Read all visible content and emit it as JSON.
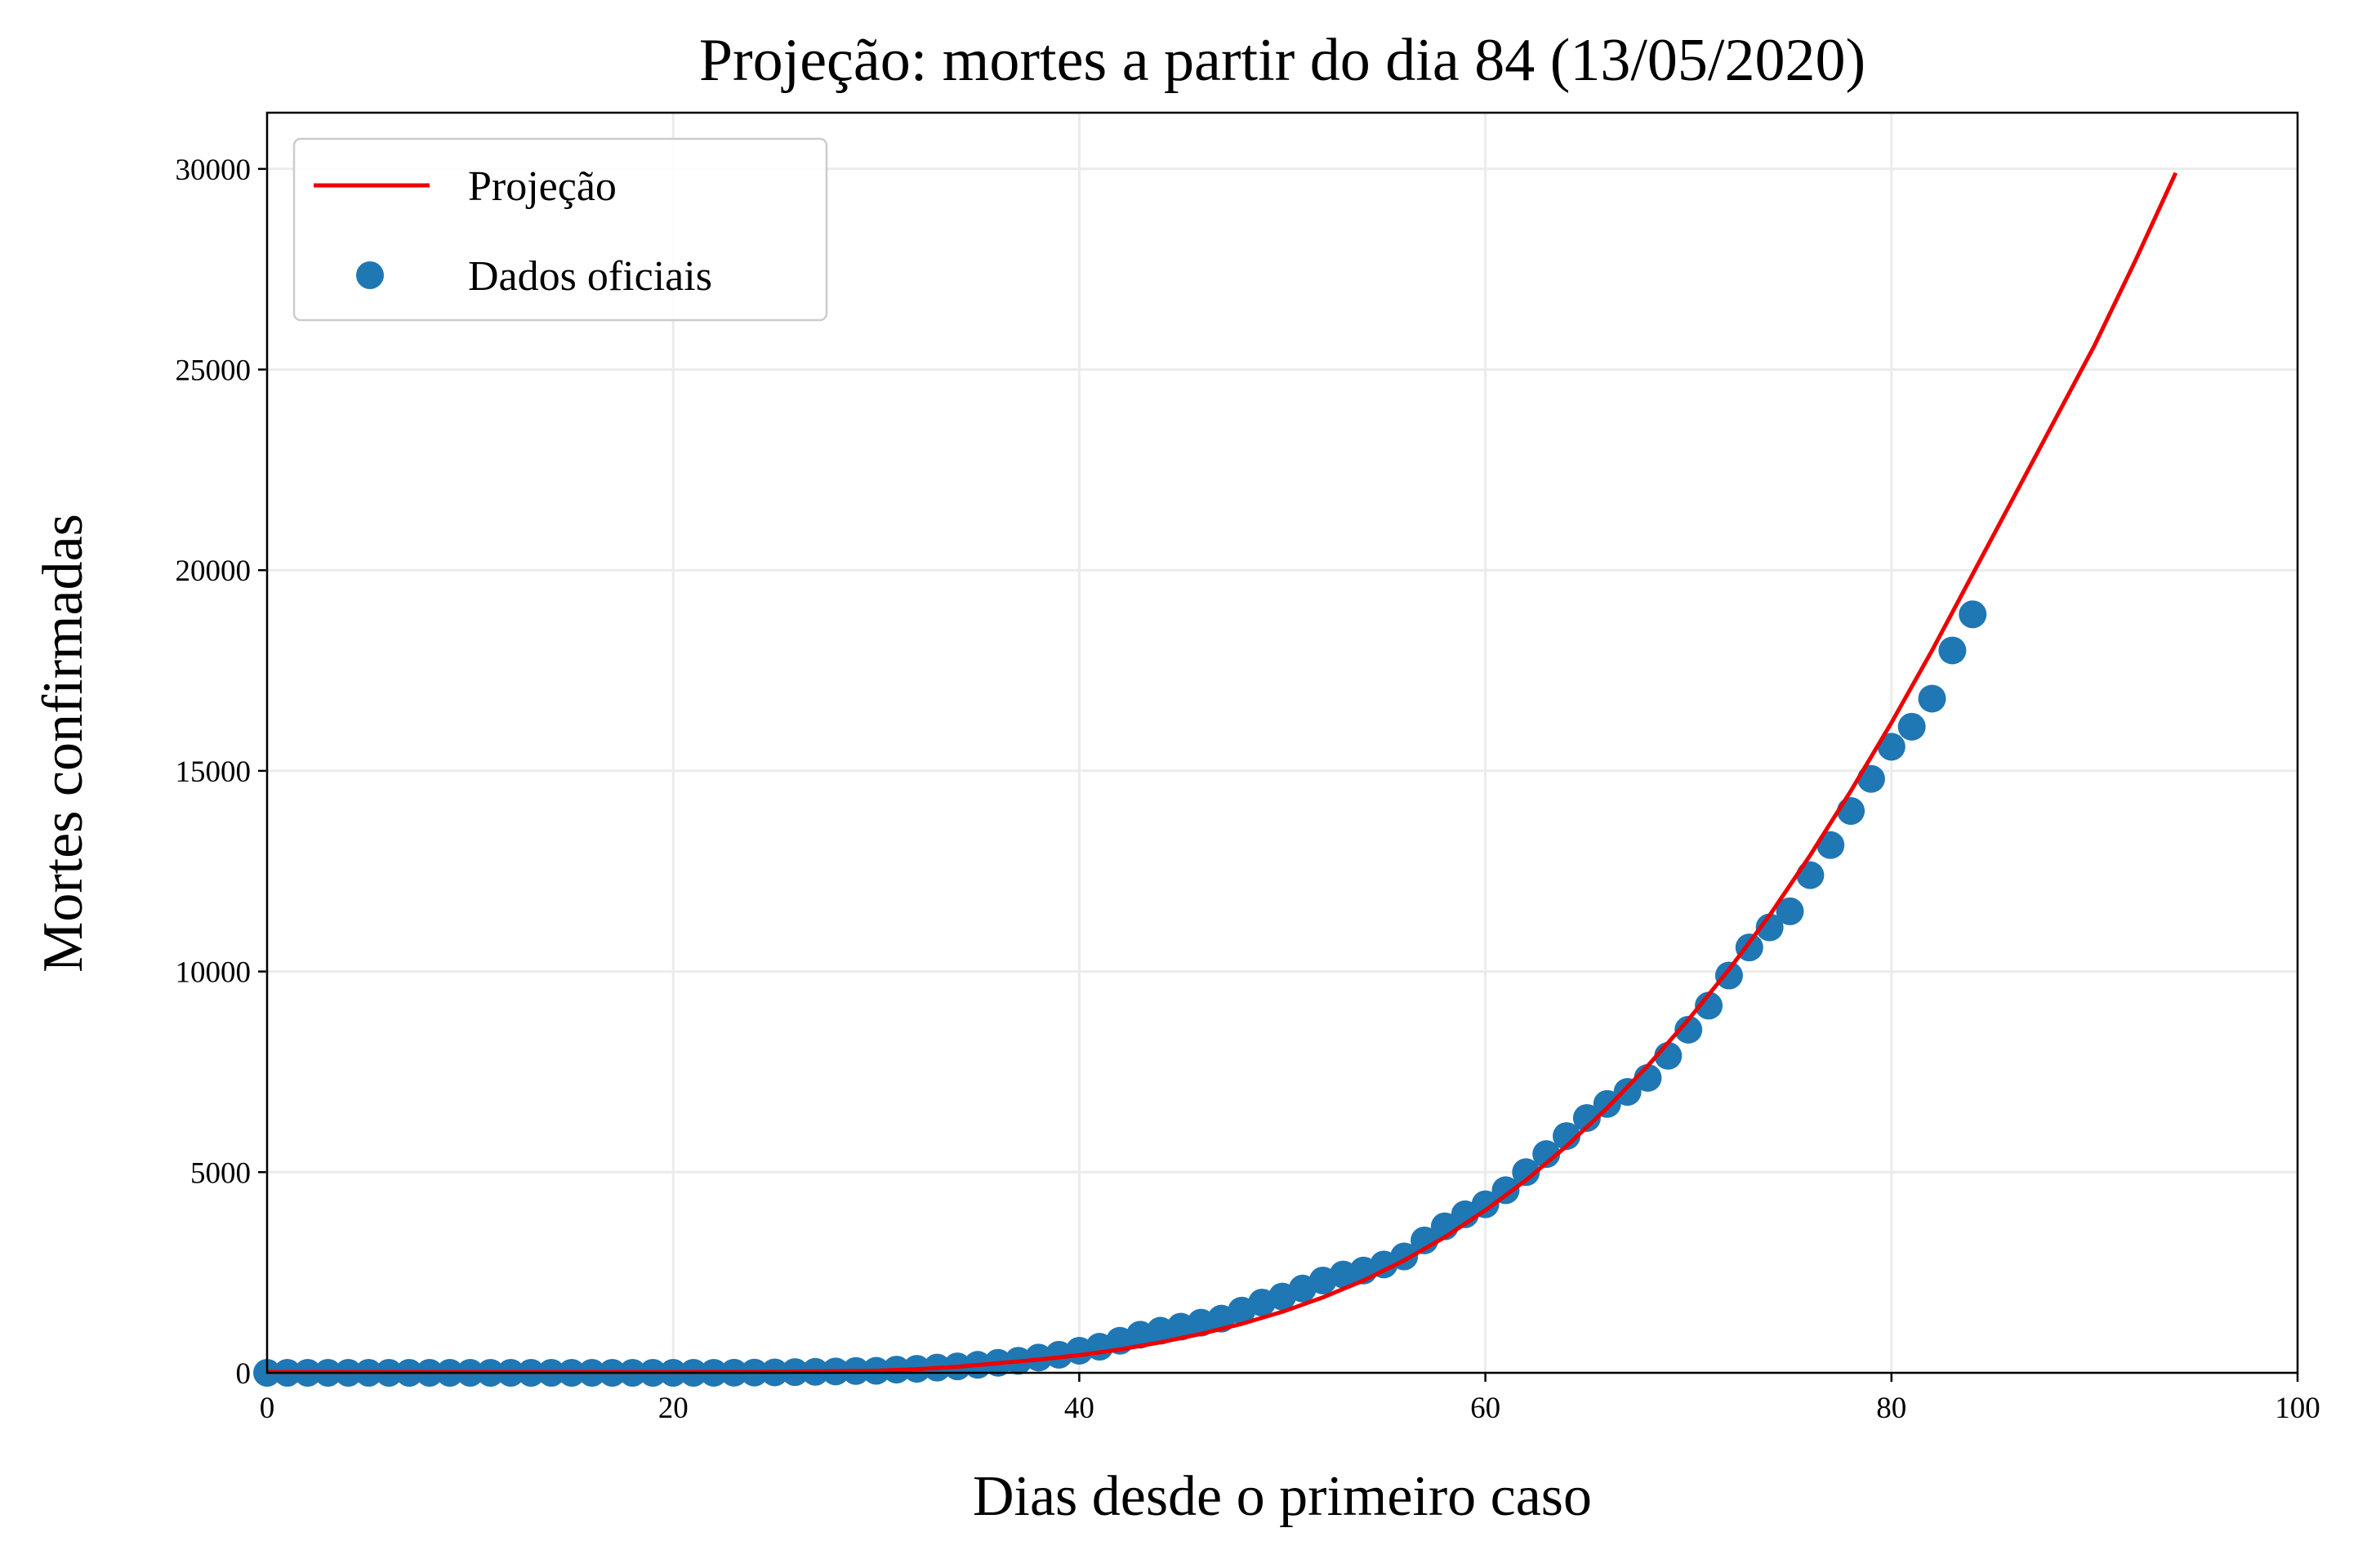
{
  "chart_data": {
    "type": "line_scatter",
    "title": "Projeção: mortes a partir do dia 84 (13/05/2020)",
    "x_label": "Dias desde o primeiro caso",
    "y_label": "Mortes confirmadas",
    "xlim": [
      0,
      100
    ],
    "ylim": [
      0,
      31400
    ],
    "xticks": [
      0,
      20,
      40,
      60,
      80,
      100
    ],
    "yticks": [
      0,
      5000,
      10000,
      15000,
      20000,
      25000,
      30000
    ],
    "grid": true,
    "legend": "upper left",
    "series": [
      {
        "name": "Projeção",
        "kind": "line",
        "color": "#ee0000",
        "x": [
          0,
          10,
          20,
          25,
          30,
          32,
          34,
          36,
          38,
          40,
          42,
          44,
          46,
          48,
          50,
          52,
          54,
          56,
          58,
          60,
          62,
          64,
          66,
          68,
          70,
          72,
          74,
          76,
          78,
          80,
          82,
          84,
          86,
          88,
          90,
          92,
          94
        ],
        "values": [
          20,
          20,
          20,
          25,
          50,
          90,
          150,
          240,
          330,
          440,
          580,
          760,
          970,
          1220,
          1520,
          1880,
          2300,
          2800,
          3380,
          4050,
          4800,
          5650,
          6600,
          7650,
          8800,
          10050,
          11400,
          12900,
          14500,
          16200,
          18000,
          19900,
          21800,
          23700,
          25600,
          27700,
          29900
        ]
      },
      {
        "name": "Dados oficiais",
        "kind": "scatter",
        "color": "#1f77b4",
        "x": [
          0,
          1,
          2,
          3,
          4,
          5,
          6,
          7,
          8,
          9,
          10,
          11,
          12,
          13,
          14,
          15,
          16,
          17,
          18,
          19,
          20,
          21,
          22,
          23,
          24,
          25,
          26,
          27,
          28,
          29,
          30,
          31,
          32,
          33,
          34,
          35,
          36,
          37,
          38,
          39,
          40,
          41,
          42,
          43,
          44,
          45,
          46,
          47,
          48,
          49,
          50,
          51,
          52,
          53,
          54,
          55,
          56,
          57,
          58,
          59,
          60,
          61,
          62,
          63,
          64,
          65,
          66,
          67,
          68,
          69,
          70,
          71,
          72,
          73,
          74,
          75,
          76,
          77,
          78,
          79,
          80,
          81,
          82,
          83,
          84
        ],
        "values": [
          0,
          0,
          0,
          0,
          0,
          0,
          0,
          0,
          0,
          0,
          0,
          0,
          0,
          0,
          0,
          0,
          0,
          0,
          0,
          0,
          0,
          0,
          1,
          3,
          6,
          11,
          18,
          25,
          34,
          46,
          50,
          80,
          100,
          130,
          160,
          200,
          250,
          300,
          380,
          450,
          550,
          650,
          800,
          950,
          1050,
          1150,
          1250,
          1350,
          1550,
          1750,
          1900,
          2100,
          2300,
          2450,
          2550,
          2700,
          2900,
          3300,
          3650,
          3950,
          4200,
          4550,
          5000,
          5450,
          5900,
          6350,
          6700,
          7000,
          7350,
          7900,
          8550,
          9150,
          9900,
          10600,
          11100,
          11500,
          12400,
          13150,
          14000,
          14800,
          15600,
          16100,
          16800,
          18000,
          18900
        ]
      }
    ]
  }
}
